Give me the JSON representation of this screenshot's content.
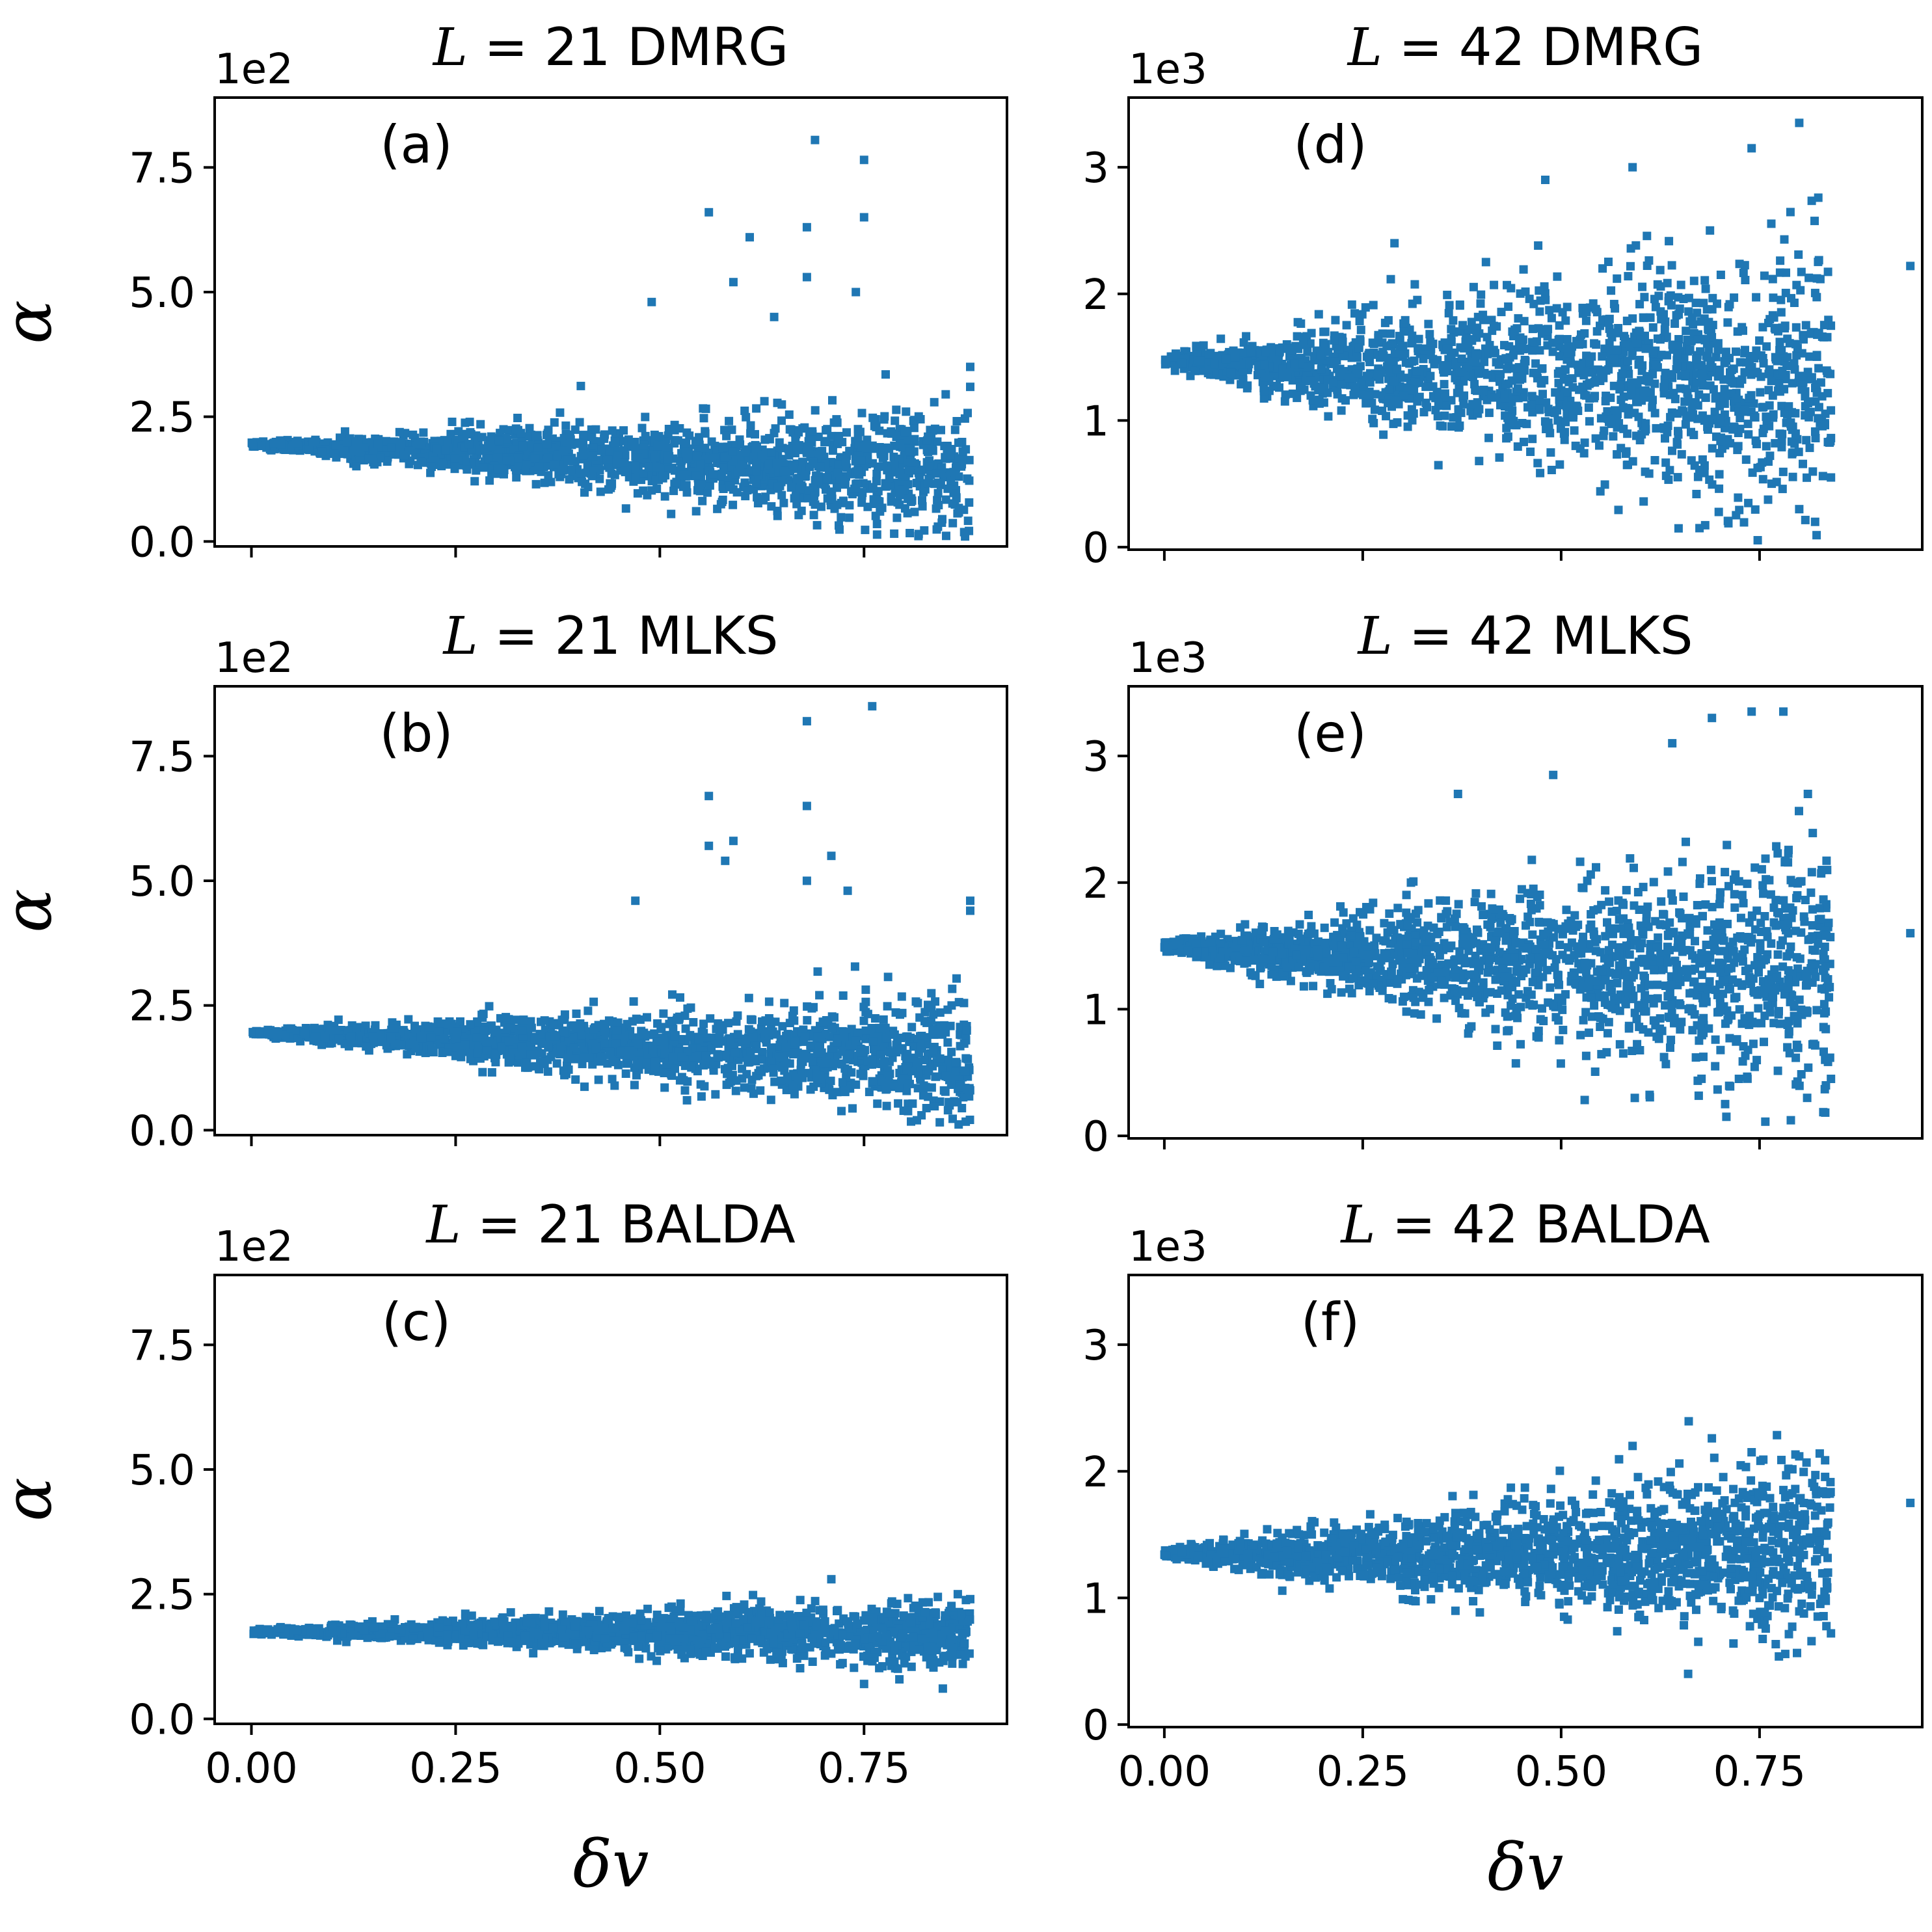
{
  "figure": {
    "marker_color": "#1f77b4",
    "xlabel_symbol": "δv",
    "ylabel_symbol": "α"
  },
  "chart_data": [
    {
      "id": "a",
      "type": "scatter",
      "title_prefix": "L",
      "title_eq": " = 21 DMRG",
      "panel_label": "(a)",
      "exponent_label": "1e2",
      "xlabel": "",
      "ylabel": "α",
      "xlim": [
        -0.045,
        0.925
      ],
      "ylim": [
        -0.1,
        8.9
      ],
      "xticks": [
        0,
        0.25,
        0.5,
        0.75
      ],
      "xtick_labels": [],
      "yticks": [
        0,
        2.5,
        5,
        7.5
      ],
      "ytick_labels": [
        "0.0",
        "2.5",
        "5.0",
        "7.5"
      ],
      "distribution": {
        "center_start": 1.95,
        "center_end": 1.4,
        "spread_end": 1.35,
        "n_points": 1700,
        "x_max": 0.88
      },
      "outliers": [
        [
          0.69,
          8.05
        ],
        [
          0.75,
          7.65
        ],
        [
          0.56,
          6.6
        ],
        [
          0.61,
          6.1
        ],
        [
          0.68,
          6.3
        ],
        [
          0.75,
          6.5
        ],
        [
          0.68,
          5.3
        ],
        [
          0.74,
          5.0
        ],
        [
          0.49,
          4.8
        ],
        [
          0.59,
          5.2
        ],
        [
          0.64,
          4.5
        ],
        [
          0.85,
          2.95
        ],
        [
          0.88,
          3.1
        ],
        [
          0.88,
          3.5
        ]
      ]
    },
    {
      "id": "b",
      "type": "scatter",
      "title_prefix": "L",
      "title_eq": " = 21 MLKS",
      "panel_label": "(b)",
      "exponent_label": "1e2",
      "xlabel": "",
      "ylabel": "α",
      "xlim": [
        -0.045,
        0.925
      ],
      "ylim": [
        -0.1,
        8.9
      ],
      "xticks": [
        0,
        0.25,
        0.5,
        0.75
      ],
      "xtick_labels": [],
      "yticks": [
        0,
        2.5,
        5,
        7.5
      ],
      "ytick_labels": [
        "0.0",
        "2.5",
        "5.0",
        "7.5"
      ],
      "distribution": {
        "center_start": 1.95,
        "center_end": 1.45,
        "spread_end": 1.3,
        "n_points": 1700,
        "x_max": 0.88
      },
      "outliers": [
        [
          0.76,
          8.5
        ],
        [
          0.68,
          8.2
        ],
        [
          0.68,
          6.5
        ],
        [
          0.56,
          6.7
        ],
        [
          0.56,
          5.7
        ],
        [
          0.59,
          5.8
        ],
        [
          0.71,
          5.5
        ],
        [
          0.58,
          5.4
        ],
        [
          0.47,
          4.6
        ],
        [
          0.68,
          5.0
        ],
        [
          0.73,
          4.8
        ],
        [
          0.88,
          4.6
        ],
        [
          0.88,
          4.4
        ]
      ]
    },
    {
      "id": "c",
      "type": "scatter",
      "title_prefix": "L",
      "title_eq": " = 21 BALDA",
      "panel_label": "(c)",
      "exponent_label": "1e2",
      "xlabel": "δv",
      "ylabel": "α",
      "xlim": [
        -0.045,
        0.925
      ],
      "ylim": [
        -0.1,
        8.9
      ],
      "xticks": [
        0,
        0.25,
        0.5,
        0.75
      ],
      "xtick_labels": [
        "0.00",
        "0.25",
        "0.50",
        "0.75"
      ],
      "yticks": [
        0,
        2.5,
        5,
        7.5
      ],
      "ytick_labels": [
        "0.0",
        "2.5",
        "5.0",
        "7.5"
      ],
      "distribution": {
        "center_start": 1.75,
        "center_end": 1.7,
        "spread_end": 0.75,
        "n_points": 1700,
        "x_max": 0.88
      },
      "outliers": [
        [
          0.71,
          2.8
        ],
        [
          0.75,
          0.7
        ],
        [
          0.88,
          2.4
        ]
      ]
    },
    {
      "id": "d",
      "type": "scatter",
      "title_prefix": "L",
      "title_eq": " = 42 DMRG",
      "panel_label": "(d)",
      "exponent_label": "1e3",
      "xlabel": "",
      "ylabel": "",
      "xlim": [
        -0.045,
        0.955
      ],
      "ylim": [
        -0.02,
        3.55
      ],
      "xticks": [
        0,
        0.25,
        0.5,
        0.75
      ],
      "xtick_labels": [],
      "yticks": [
        0,
        1,
        2,
        3
      ],
      "ytick_labels": [
        "0",
        "1",
        "2",
        "3"
      ],
      "distribution": {
        "center_start": 1.47,
        "center_end": 1.3,
        "spread_end": 1.25,
        "n_points": 1800,
        "x_max": 0.84
      },
      "outliers": [
        [
          0.94,
          2.22
        ],
        [
          0.8,
          3.35
        ],
        [
          0.74,
          3.15
        ],
        [
          0.59,
          3.0
        ],
        [
          0.48,
          2.9
        ],
        [
          0.29,
          2.4
        ],
        [
          0.84,
          0.55
        ],
        [
          0.82,
          0.2
        ],
        [
          0.8,
          0.3
        ]
      ]
    },
    {
      "id": "e",
      "type": "scatter",
      "title_prefix": "L",
      "title_eq": " = 42 MLKS",
      "panel_label": "(e)",
      "exponent_label": "1e3",
      "xlabel": "",
      "ylabel": "",
      "xlim": [
        -0.045,
        0.955
      ],
      "ylim": [
        -0.02,
        3.55
      ],
      "xticks": [
        0,
        0.25,
        0.5,
        0.75
      ],
      "xtick_labels": [],
      "yticks": [
        0,
        1,
        2,
        3
      ],
      "ytick_labels": [
        "0",
        "1",
        "2",
        "3"
      ],
      "distribution": {
        "center_start": 1.5,
        "center_end": 1.25,
        "spread_end": 1.05,
        "n_points": 1800,
        "x_max": 0.84
      },
      "outliers": [
        [
          0.94,
          1.6
        ],
        [
          0.78,
          3.35
        ],
        [
          0.74,
          3.35
        ],
        [
          0.69,
          3.3
        ],
        [
          0.64,
          3.1
        ],
        [
          0.49,
          2.85
        ],
        [
          0.37,
          2.7
        ],
        [
          0.84,
          0.45
        ],
        [
          0.81,
          0.3
        ]
      ]
    },
    {
      "id": "f",
      "type": "scatter",
      "title_prefix": "L",
      "title_eq": " = 42 BALDA",
      "panel_label": "(f)",
      "exponent_label": "1e3",
      "xlabel": "δv",
      "ylabel": "",
      "xlim": [
        -0.045,
        0.955
      ],
      "ylim": [
        -0.02,
        3.55
      ],
      "xticks": [
        0,
        0.25,
        0.5,
        0.75
      ],
      "xtick_labels": [
        "0.00",
        "0.25",
        "0.50",
        "0.75"
      ],
      "yticks": [
        0,
        1,
        2,
        3
      ],
      "ytick_labels": [
        "0",
        "1",
        "2",
        "3"
      ],
      "distribution": {
        "center_start": 1.35,
        "center_end": 1.35,
        "spread_end": 0.75,
        "n_points": 1800,
        "x_max": 0.84
      },
      "outliers": [
        [
          0.94,
          1.75
        ],
        [
          0.59,
          2.2
        ],
        [
          0.74,
          2.15
        ],
        [
          0.82,
          1.65
        ],
        [
          0.84,
          0.72
        ],
        [
          0.66,
          0.4
        ]
      ]
    }
  ]
}
